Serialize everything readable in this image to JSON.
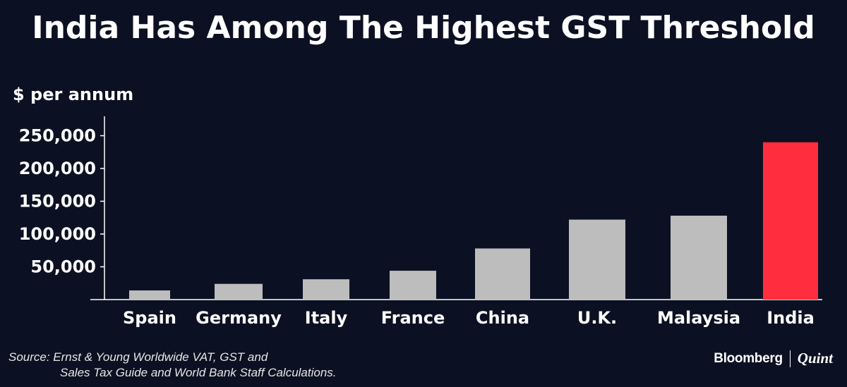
{
  "title": "India Has Among The Highest GST Threshold",
  "source_line1": "Source: Ernst & Young Worldwide VAT, GST and",
  "source_line2": "Sales Tax Guide and World Bank Staff Calculations.",
  "brand": {
    "name": "Bloomberg",
    "partner": "Quint"
  },
  "colors": {
    "background": "#0b1122",
    "bar": "#bdbdbd",
    "highlight": "#ff2d3d",
    "text": "#ffffff"
  },
  "chart_data": {
    "type": "bar",
    "title": "India Has Among The Highest GST Threshold",
    "ylabel": "$ per annum",
    "xlabel": "",
    "categories": [
      "Spain",
      "Germany",
      "Italy",
      "France",
      "China",
      "U.K.",
      "Malaysia",
      "India"
    ],
    "values": [
      14000,
      24000,
      31000,
      44000,
      78000,
      122000,
      128000,
      240000
    ],
    "highlight": "India",
    "ylim": [
      0,
      280000
    ],
    "yticks": [
      50000,
      100000,
      150000,
      200000,
      250000
    ],
    "ytick_labels": [
      "50,000",
      "100,000",
      "150,000",
      "200,000",
      "250,000"
    ],
    "grid": false,
    "legend": "none"
  }
}
